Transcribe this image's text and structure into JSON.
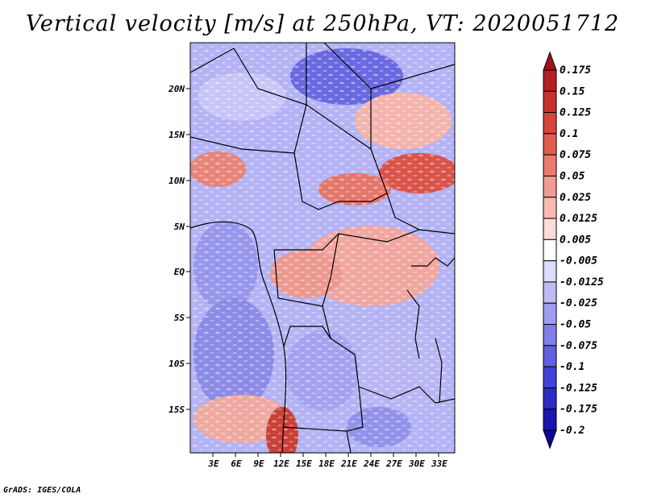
{
  "title": "Vertical velocity [m/s] at 250hPa, VT: 2020051712",
  "footer": "GrADS: IGES/COLA",
  "lat_labels": [
    "20N",
    "15N",
    "10N",
    "5N",
    "EQ",
    "5S",
    "10S",
    "15S"
  ],
  "lon_labels": [
    "3E",
    "6E",
    "9E",
    "12E",
    "15E",
    "18E",
    "21E",
    "24E",
    "27E",
    "30E",
    "33E"
  ],
  "colorbar": {
    "labels": [
      "0.175",
      "0.15",
      "0.125",
      "0.1",
      "0.075",
      "0.05",
      "0.025",
      "0.0125",
      "0.005",
      "-0.005",
      "-0.0125",
      "-0.025",
      "-0.05",
      "-0.075",
      "-0.1",
      "-0.125",
      "-0.175",
      "-0.2"
    ],
    "colors": [
      "#a3111b",
      "#b81f24",
      "#c9302b",
      "#d84438",
      "#e35c4f",
      "#ec7b6f",
      "#f39a91",
      "#f8bab2",
      "#fcdcd8",
      "#ffffff",
      "#dcdcfb",
      "#bdbcf7",
      "#9e9df2",
      "#807eeb",
      "#6160e2",
      "#4442d6",
      "#2d2bc5",
      "#1a16b2",
      "#0c0698"
    ]
  }
}
